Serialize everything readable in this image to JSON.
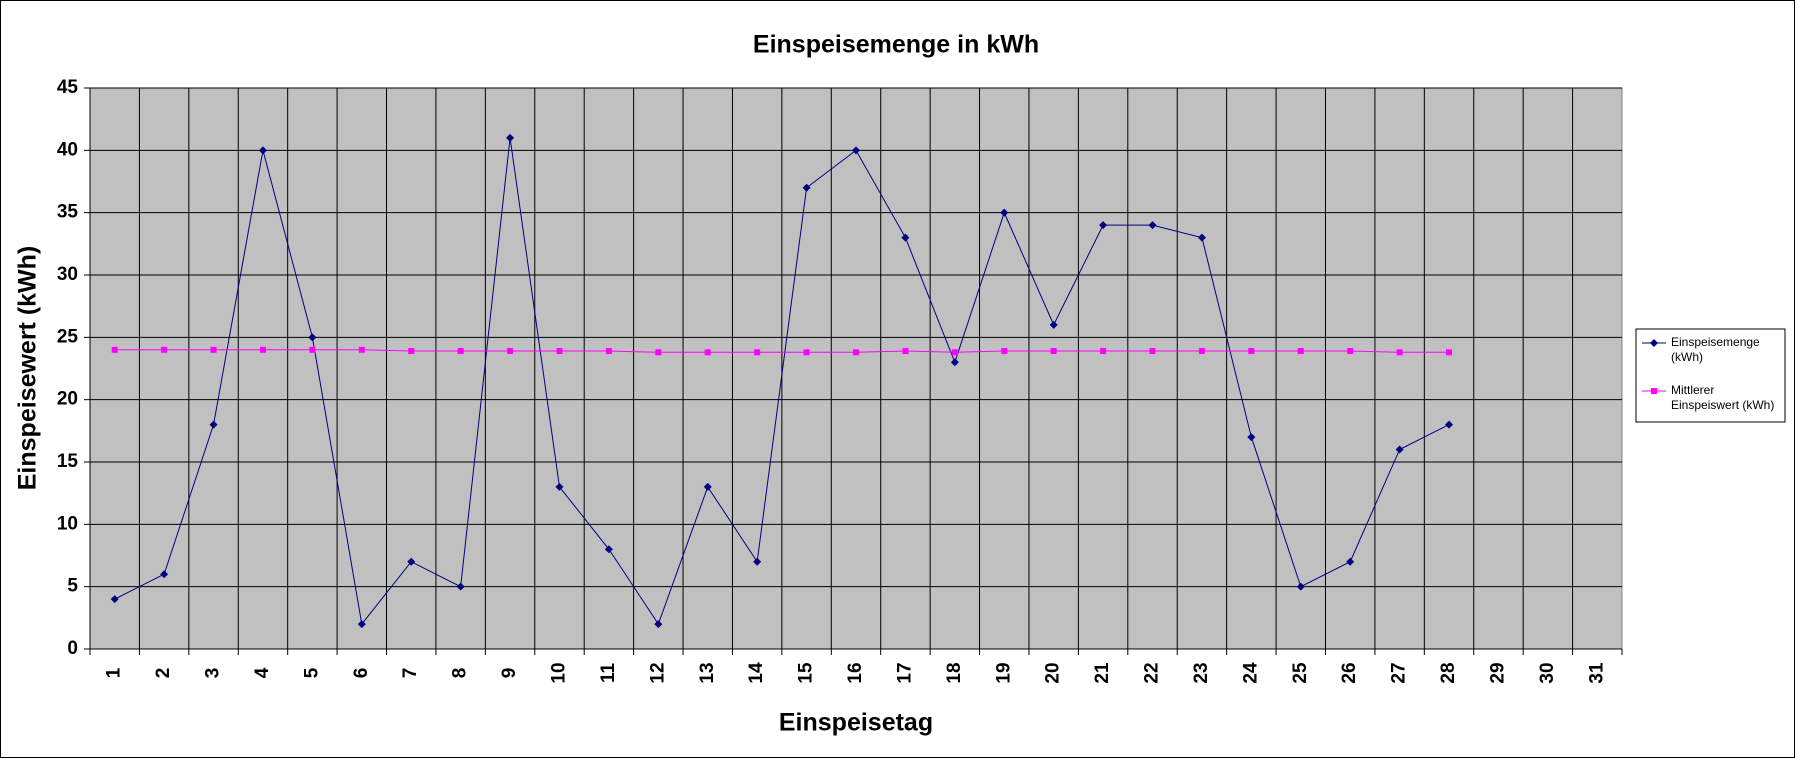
{
  "chart_data": {
    "type": "line",
    "title": "Einspeisemenge in kWh",
    "x_label": "Einspeisetag",
    "y_label": "Einspeisewert  (kWh)",
    "categories": [
      "1",
      "2",
      "3",
      "4",
      "5",
      "6",
      "7",
      "8",
      "9",
      "10",
      "11",
      "12",
      "13",
      "14",
      "15",
      "16",
      "17",
      "18",
      "19",
      "20",
      "21",
      "22",
      "23",
      "24",
      "25",
      "26",
      "27",
      "28",
      "29",
      "30",
      "31"
    ],
    "series": [
      {
        "name": "Einspeisemenge (kWh)",
        "color": "#000080",
        "marker": "diamond",
        "values": [
          4,
          6,
          18,
          40,
          25,
          2,
          7,
          5,
          41,
          13,
          8,
          2,
          13,
          7,
          37,
          40,
          33,
          23,
          35,
          26,
          34,
          34,
          33,
          17,
          5,
          7,
          16,
          18,
          null,
          null,
          null
        ]
      },
      {
        "name": "Mittlerer Einspeiswert (kWh)",
        "color": "#ff00ff",
        "marker": "square",
        "values": [
          24,
          24,
          24,
          24,
          24,
          24,
          23.9,
          23.9,
          23.9,
          23.9,
          23.9,
          23.8,
          23.8,
          23.8,
          23.8,
          23.8,
          23.9,
          23.8,
          23.9,
          23.9,
          23.9,
          23.9,
          23.9,
          23.9,
          23.9,
          23.9,
          23.8,
          23.8,
          null,
          null,
          null
        ]
      }
    ],
    "ylim": [
      0,
      45
    ],
    "yticks": [
      0,
      5,
      10,
      15,
      20,
      25,
      30,
      35,
      40,
      45
    ],
    "grid": true,
    "legend": "right"
  }
}
